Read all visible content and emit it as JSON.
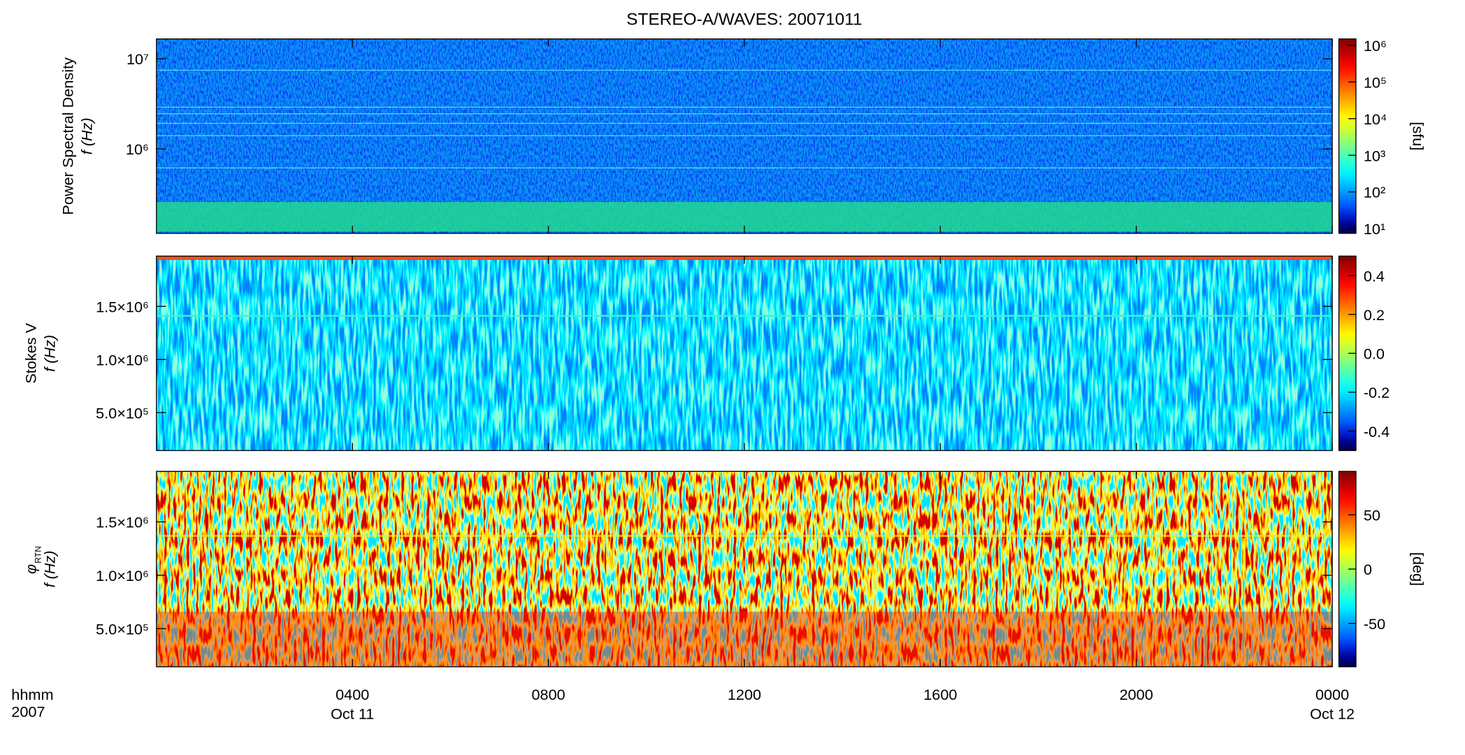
{
  "chart_data": [
    {
      "type": "heatmap",
      "title": "STEREO-A/WAVES: 20071011",
      "ylabel": [
        "Power Spectral Density",
        "f (Hz)"
      ],
      "ylog": true,
      "ylim": [
        116000,
        16600000
      ],
      "yticks": [
        {
          "value": 1000000,
          "label": "10⁶"
        },
        {
          "value": 10000000,
          "label": "10⁷"
        }
      ],
      "xlim": [
        0,
        24
      ],
      "colorbar": {
        "label": "[sfu]",
        "log": true,
        "clim": [
          7.4,
          1500000
        ],
        "ticks": [
          {
            "value": 10,
            "label": "10¹"
          },
          {
            "value": 100,
            "label": "10²"
          },
          {
            "value": 1000,
            "label": "10³"
          },
          {
            "value": 10000,
            "label": "10⁴"
          },
          {
            "value": 100000,
            "label": "10⁵"
          },
          {
            "value": 1000000,
            "label": "10⁶"
          }
        ]
      }
    },
    {
      "type": "heatmap",
      "ylabel": [
        "Stokes V",
        "f (Hz)"
      ],
      "ylog": false,
      "ylim": [
        143000,
        1973000
      ],
      "yticks": [
        {
          "value": 500000,
          "label": "5.0×10⁵"
        },
        {
          "value": 1000000,
          "label": "1.0×10⁶"
        },
        {
          "value": 1500000,
          "label": "1.5×10⁶"
        }
      ],
      "xlim": [
        0,
        24
      ],
      "colorbar": {
        "label": "",
        "log": false,
        "clim": [
          -0.5,
          0.5
        ],
        "ticks": [
          -0.4,
          -0.2,
          {
            "value": 0,
            "label": "0.0"
          },
          0.2,
          0.4
        ]
      }
    },
    {
      "type": "heatmap",
      "ylabel": [
        "φ",
        "f (Hz)"
      ],
      "ylabel_sub": "RTN",
      "ylog": false,
      "ylim": [
        143000,
        1973000
      ],
      "yticks": [
        {
          "value": 500000,
          "label": "5.0×10⁵"
        },
        {
          "value": 1000000,
          "label": "1.0×10⁶"
        },
        {
          "value": 1500000,
          "label": "1.5×10⁶"
        }
      ],
      "xlim": [
        0,
        24
      ],
      "xticks": [
        {
          "value": 4,
          "label": "0400"
        },
        {
          "value": 8,
          "label": "0800"
        },
        {
          "value": 12,
          "label": "1200"
        },
        {
          "value": 16,
          "label": "1600"
        },
        {
          "value": 20,
          "label": "2000"
        },
        {
          "value": 24,
          "label": "0000"
        }
      ],
      "xtick_dates": [
        {
          "value": 4,
          "label": "Oct 11"
        },
        {
          "value": 24,
          "label": "Oct 12"
        }
      ],
      "xlabel": [
        "hhmm",
        "2007"
      ],
      "colorbar": {
        "label": "[deg]",
        "log": false,
        "clim": [
          -90,
          90
        ],
        "ticks": [
          -50,
          0,
          50
        ]
      }
    }
  ]
}
